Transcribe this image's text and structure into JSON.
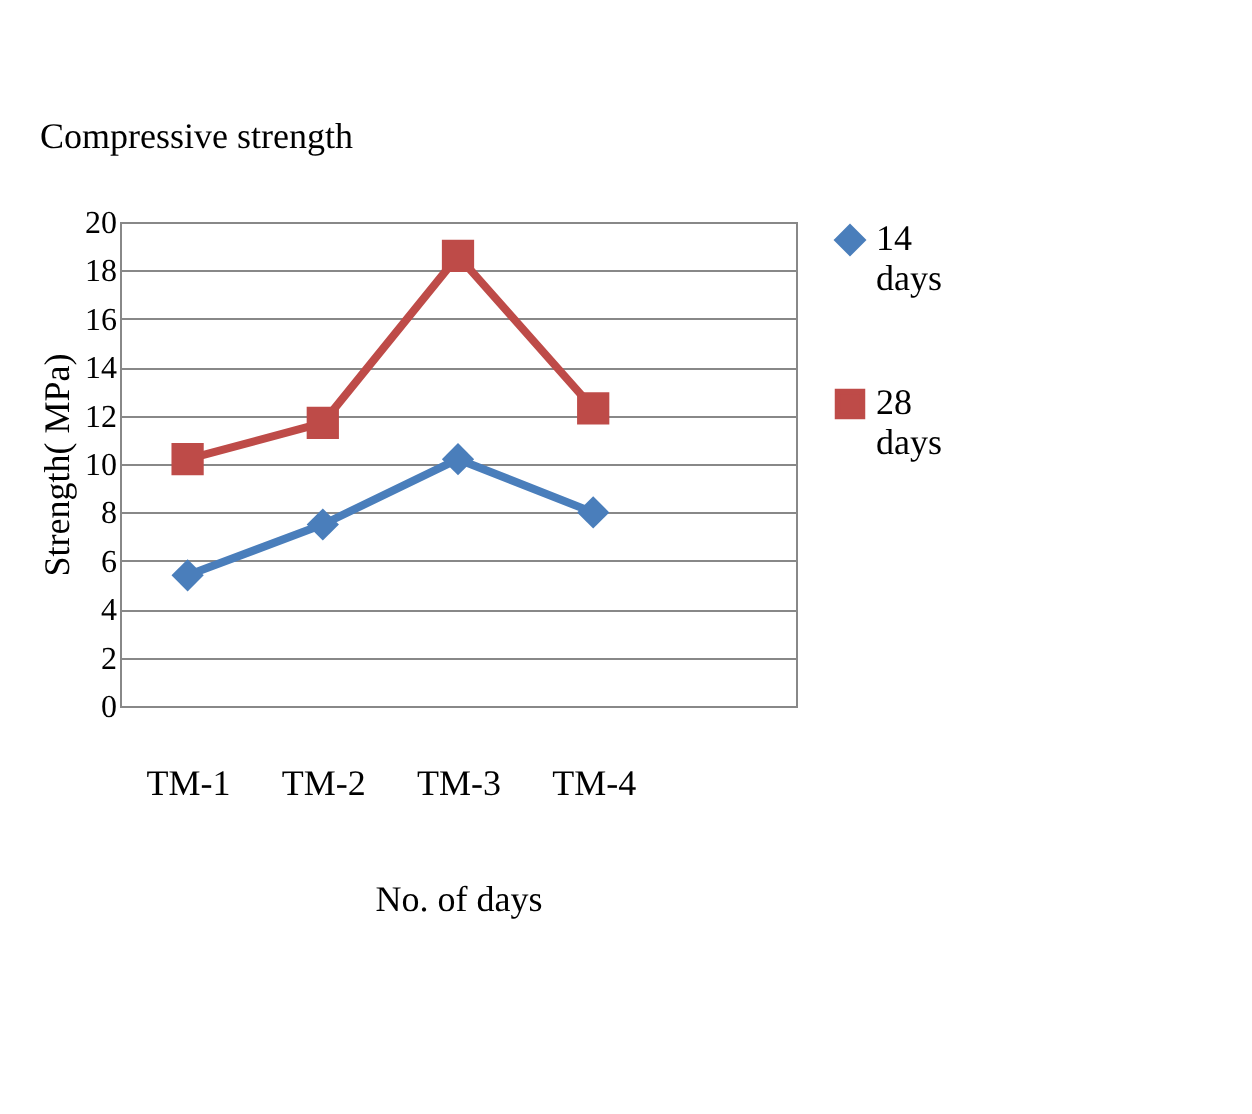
{
  "chart_data": {
    "type": "line",
    "title": "Compressive strength",
    "xlabel": "No. of days",
    "ylabel": "Strength( MPa)",
    "categories": [
      "TM-1",
      "TM-2",
      "TM-3",
      "TM-4",
      null
    ],
    "series": [
      {
        "name": "14 days",
        "color": "#4a7ebb",
        "marker": "diamond",
        "values": [
          5.4,
          7.5,
          10.2,
          8.0,
          null
        ]
      },
      {
        "name": "28 days",
        "color": "#be4b48",
        "marker": "square",
        "values": [
          10.2,
          11.7,
          18.6,
          12.3,
          null
        ]
      }
    ],
    "ylim": [
      0,
      20
    ],
    "yticks": [
      0,
      2,
      4,
      6,
      8,
      10,
      12,
      14,
      16,
      18,
      20
    ],
    "grid": "y",
    "legend": "right",
    "line_style": "solid"
  }
}
